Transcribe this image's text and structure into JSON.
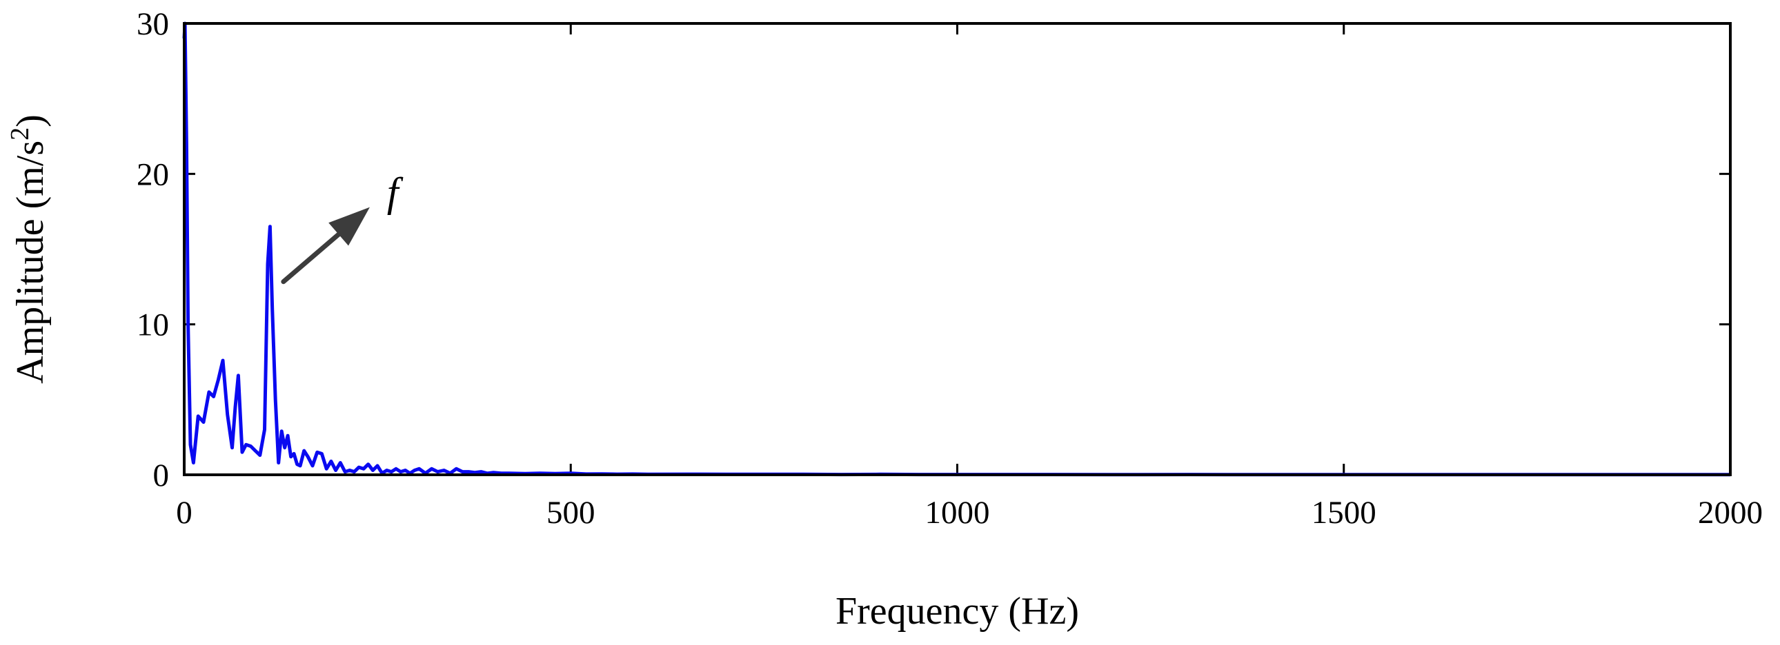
{
  "chart_data": {
    "type": "line",
    "title": "",
    "xlabel": "Frequency (Hz)",
    "ylabel_parts": {
      "base": "Amplitude (m/s",
      "sup": "2",
      "tail": ")"
    },
    "xlim": [
      0,
      2000
    ],
    "ylim": [
      0,
      30
    ],
    "xticks": [
      0,
      500,
      1000,
      1500,
      2000
    ],
    "yticks": [
      0,
      10,
      20,
      30
    ],
    "grid": false,
    "line_color": "#0a0af0",
    "annotation": {
      "text": "f",
      "x": 115,
      "y": 16.5
    },
    "series": [
      {
        "x": [
          0,
          1,
          3,
          5,
          8,
          12,
          18,
          25,
          32,
          38,
          44,
          50,
          56,
          62,
          66,
          70,
          75,
          80,
          86,
          92,
          98,
          104,
          108,
          111,
          114,
          118,
          122,
          126,
          130,
          134,
          138,
          142,
          146,
          150,
          155,
          160,
          166,
          172,
          178,
          184,
          190,
          196,
          202,
          208,
          214,
          220,
          226,
          232,
          238,
          244,
          250,
          256,
          262,
          268,
          274,
          280,
          286,
          292,
          298,
          304,
          312,
          320,
          328,
          336,
          344,
          352,
          360,
          368,
          376,
          384,
          392,
          400,
          410,
          420,
          440,
          460,
          480,
          500,
          520,
          540,
          560,
          580,
          600,
          650,
          700,
          750,
          800,
          850,
          900,
          950,
          1000,
          1100,
          1200,
          1300,
          1400,
          1500,
          1600,
          1700,
          1800,
          1900,
          2000
        ],
        "y": [
          29,
          30,
          22,
          10,
          2.0,
          0.8,
          3.9,
          3.5,
          5.5,
          5.2,
          6.3,
          7.6,
          4.0,
          1.8,
          4.5,
          6.6,
          1.5,
          2.0,
          1.9,
          1.6,
          1.3,
          3.0,
          14.0,
          16.5,
          11.0,
          5.0,
          0.8,
          2.9,
          1.8,
          2.6,
          1.2,
          1.4,
          0.7,
          0.6,
          1.6,
          1.2,
          0.6,
          1.5,
          1.4,
          0.4,
          0.9,
          0.3,
          0.8,
          0.2,
          0.3,
          0.2,
          0.5,
          0.4,
          0.7,
          0.3,
          0.6,
          0.1,
          0.3,
          0.2,
          0.4,
          0.2,
          0.3,
          0.1,
          0.3,
          0.4,
          0.1,
          0.4,
          0.2,
          0.3,
          0.1,
          0.4,
          0.2,
          0.2,
          0.15,
          0.2,
          0.1,
          0.15,
          0.1,
          0.1,
          0.08,
          0.1,
          0.08,
          0.1,
          0.05,
          0.06,
          0.04,
          0.05,
          0.03,
          0.04,
          0.03,
          0.03,
          0.03,
          0.02,
          0.03,
          0.02,
          0.02,
          0.02,
          0.01,
          0.02,
          0.01,
          0.01,
          0.01,
          0.01,
          0.01,
          0.01,
          0.01
        ]
      }
    ]
  }
}
